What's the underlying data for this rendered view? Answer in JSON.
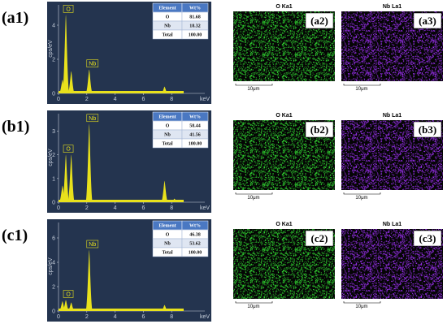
{
  "rows": [
    {
      "label": "(a1)",
      "spectrum": {
        "y_label": "cps/eV",
        "x_unit": "keV",
        "xlim": [
          0,
          10
        ],
        "xticks": [
          0,
          2,
          4,
          6,
          8
        ],
        "ylim": [
          0,
          5
        ],
        "yticks": [
          0,
          2,
          4
        ],
        "peaks": [
          {
            "keV": 0.28,
            "cps": 0.8
          },
          {
            "keV": 0.52,
            "cps": 4.6,
            "label": "O"
          },
          {
            "keV": 0.9,
            "cps": 1.3
          },
          {
            "keV": 2.17,
            "cps": 1.4,
            "label": "Nb"
          },
          {
            "keV": 7.5,
            "cps": 0.4
          }
        ]
      },
      "table": {
        "header": [
          "Element",
          "Wt%"
        ],
        "rows": [
          [
            "O",
            "81.68"
          ],
          [
            "Nb",
            "18.32"
          ],
          [
            "Total",
            "100.00"
          ]
        ]
      },
      "maps": [
        {
          "title": "O Ka1",
          "label": "(a2)",
          "scale": "10μm"
        },
        {
          "title": "Nb La1",
          "label": "(a3)",
          "scale": "10μm"
        }
      ]
    },
    {
      "label": "(b1)",
      "spectrum": {
        "y_label": "cps/eV",
        "x_unit": "keV",
        "xlim": [
          0,
          10
        ],
        "xticks": [
          0,
          2,
          4,
          6,
          8
        ],
        "ylim": [
          0,
          3.6
        ],
        "yticks": [
          0,
          1,
          2,
          3
        ],
        "peaks": [
          {
            "keV": 0.28,
            "cps": 0.7
          },
          {
            "keV": 0.52,
            "cps": 2.0,
            "label": "O"
          },
          {
            "keV": 0.9,
            "cps": 2.0
          },
          {
            "keV": 2.17,
            "cps": 3.3,
            "label": "Nb"
          },
          {
            "keV": 7.5,
            "cps": 0.9
          },
          {
            "keV": 8.2,
            "cps": 0.15
          }
        ]
      },
      "table": {
        "header": [
          "Element",
          "Wt%"
        ],
        "rows": [
          [
            "O",
            "58.44"
          ],
          [
            "Nb",
            "41.56"
          ],
          [
            "Total",
            "100.00"
          ]
        ]
      },
      "maps": [
        {
          "title": "O Ka1",
          "label": "(b2)",
          "scale": "10μm"
        },
        {
          "title": "Nb La1",
          "label": "(b3)",
          "scale": "10μm"
        }
      ]
    },
    {
      "label": "(c1)",
      "spectrum": {
        "y_label": "cps/eV",
        "x_unit": "keV",
        "xlim": [
          0,
          10
        ],
        "xticks": [
          0,
          2,
          4,
          6,
          8
        ],
        "ylim": [
          0,
          7
        ],
        "yticks": [
          0,
          2,
          4,
          6
        ],
        "peaks": [
          {
            "keV": 0.28,
            "cps": 0.8
          },
          {
            "keV": 0.52,
            "cps": 0.9,
            "label": "O"
          },
          {
            "keV": 0.9,
            "cps": 0.7
          },
          {
            "keV": 2.17,
            "cps": 5.0,
            "label": "Nb"
          },
          {
            "keV": 7.5,
            "cps": 0.5
          }
        ]
      },
      "table": {
        "header": [
          "Element",
          "Wt%"
        ],
        "rows": [
          [
            "O",
            "46.38"
          ],
          [
            "Nb",
            "53.62"
          ],
          [
            "Total",
            "100.00"
          ]
        ]
      },
      "maps": [
        {
          "title": "O Ka1",
          "label": "(c2)",
          "scale": "10μm"
        },
        {
          "title": "Nb La1",
          "label": "(c3)",
          "scale": "10μm"
        }
      ]
    }
  ]
}
